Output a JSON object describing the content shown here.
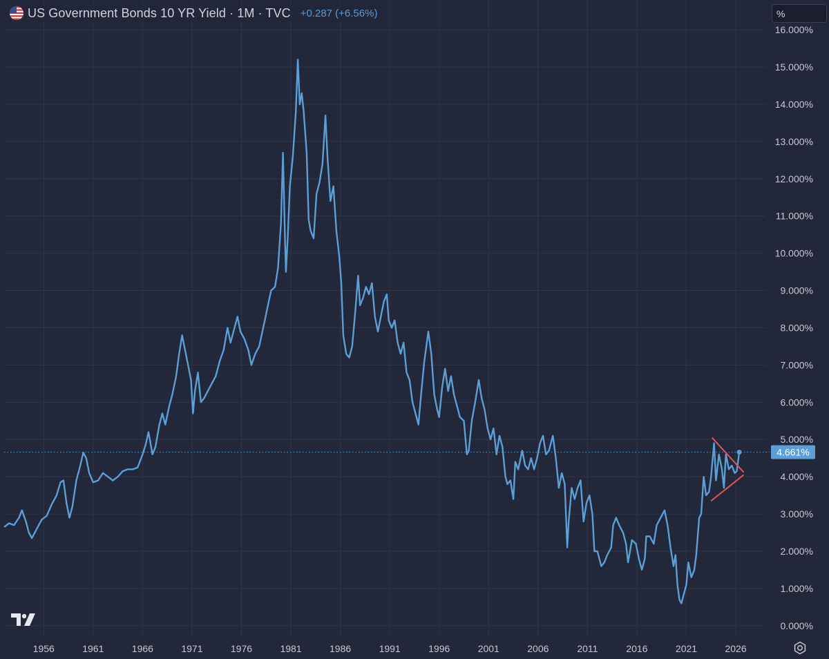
{
  "header": {
    "title": "US Government Bonds 10 YR Yield · 1M · TVC",
    "change": "+0.287 (+6.56%)",
    "flag_icon": "us-flag-icon"
  },
  "unit_selector": {
    "value": "%"
  },
  "colors": {
    "background": "#222739",
    "line": "#5b9fd6",
    "grid": "#2f3548",
    "axis_text": "#c7cad3",
    "price_label_bg": "#5b9fd6",
    "triangle": "#e0545a"
  },
  "icons": {
    "logo": "tradingview-logo-icon",
    "settings": "gear-icon"
  },
  "chart_data": {
    "type": "line",
    "title": "US Government Bonds 10 YR Yield · 1M · TVC",
    "xlabel": "",
    "ylabel": "",
    "y_unit": "%",
    "ylim": [
      -0.3,
      16.8
    ],
    "xlim": [
      1952.0,
      2029.0
    ],
    "x_ticks": [
      1956,
      1961,
      1966,
      1971,
      1976,
      1981,
      1986,
      1991,
      1996,
      2001,
      2006,
      2011,
      2016,
      2021,
      2026
    ],
    "x_tick_labels": [
      "1956",
      "1961",
      "1966",
      "1971",
      "1976",
      "1981",
      "1986",
      "1991",
      "1996",
      "2001",
      "2006",
      "2011",
      "2016",
      "2021",
      "2026"
    ],
    "y_ticks": [
      0,
      1,
      2,
      3,
      4,
      5,
      6,
      7,
      8,
      9,
      10,
      11,
      12,
      13,
      14,
      15,
      16
    ],
    "y_tick_labels": [
      "0.000%",
      "1.000%",
      "2.000%",
      "3.000%",
      "4.000%",
      "5.000%",
      "6.000%",
      "7.000%",
      "8.000%",
      "9.000%",
      "10.000%",
      "11.000%",
      "12.000%",
      "13.000%",
      "14.000%",
      "15.000%",
      "16.000%"
    ],
    "grid": true,
    "last_value": 4.661,
    "last_value_label": "4.661%",
    "series": [
      {
        "points": [
          [
            1952.0,
            2.65
          ],
          [
            1952.5,
            2.75
          ],
          [
            1953.0,
            2.7
          ],
          [
            1953.5,
            2.9
          ],
          [
            1953.8,
            3.1
          ],
          [
            1954.2,
            2.8
          ],
          [
            1954.5,
            2.5
          ],
          [
            1954.8,
            2.35
          ],
          [
            1955.3,
            2.6
          ],
          [
            1955.8,
            2.85
          ],
          [
            1956.3,
            2.95
          ],
          [
            1956.8,
            3.25
          ],
          [
            1957.3,
            3.5
          ],
          [
            1957.7,
            3.85
          ],
          [
            1958.0,
            3.9
          ],
          [
            1958.3,
            3.3
          ],
          [
            1958.6,
            2.9
          ],
          [
            1958.9,
            3.2
          ],
          [
            1959.3,
            3.9
          ],
          [
            1959.7,
            4.3
          ],
          [
            1960.0,
            4.65
          ],
          [
            1960.3,
            4.5
          ],
          [
            1960.6,
            4.1
          ],
          [
            1961.0,
            3.85
          ],
          [
            1961.5,
            3.9
          ],
          [
            1962.0,
            4.1
          ],
          [
            1962.5,
            4.0
          ],
          [
            1963.0,
            3.9
          ],
          [
            1963.5,
            4.0
          ],
          [
            1964.0,
            4.15
          ],
          [
            1964.5,
            4.2
          ],
          [
            1965.0,
            4.2
          ],
          [
            1965.5,
            4.25
          ],
          [
            1966.0,
            4.6
          ],
          [
            1966.3,
            4.85
          ],
          [
            1966.6,
            5.2
          ],
          [
            1967.0,
            4.6
          ],
          [
            1967.3,
            4.8
          ],
          [
            1967.7,
            5.4
          ],
          [
            1968.0,
            5.7
          ],
          [
            1968.3,
            5.4
          ],
          [
            1968.7,
            5.9
          ],
          [
            1969.0,
            6.2
          ],
          [
            1969.4,
            6.7
          ],
          [
            1969.7,
            7.3
          ],
          [
            1970.0,
            7.8
          ],
          [
            1970.3,
            7.4
          ],
          [
            1970.6,
            7.0
          ],
          [
            1970.9,
            6.6
          ],
          [
            1971.1,
            5.7
          ],
          [
            1971.3,
            6.3
          ],
          [
            1971.6,
            6.8
          ],
          [
            1971.9,
            6.0
          ],
          [
            1972.2,
            6.1
          ],
          [
            1972.6,
            6.3
          ],
          [
            1973.0,
            6.5
          ],
          [
            1973.4,
            6.7
          ],
          [
            1973.8,
            7.1
          ],
          [
            1974.2,
            7.4
          ],
          [
            1974.6,
            8.0
          ],
          [
            1974.9,
            7.6
          ],
          [
            1975.2,
            7.9
          ],
          [
            1975.6,
            8.3
          ],
          [
            1975.9,
            7.9
          ],
          [
            1976.3,
            7.7
          ],
          [
            1976.7,
            7.4
          ],
          [
            1977.0,
            7.0
          ],
          [
            1977.4,
            7.3
          ],
          [
            1977.8,
            7.5
          ],
          [
            1978.2,
            8.0
          ],
          [
            1978.6,
            8.5
          ],
          [
            1979.0,
            9.0
          ],
          [
            1979.4,
            9.1
          ],
          [
            1979.7,
            9.6
          ],
          [
            1980.0,
            10.8
          ],
          [
            1980.2,
            12.7
          ],
          [
            1980.4,
            10.4
          ],
          [
            1980.5,
            9.5
          ],
          [
            1980.7,
            10.5
          ],
          [
            1980.9,
            11.8
          ],
          [
            1981.2,
            12.6
          ],
          [
            1981.5,
            13.8
          ],
          [
            1981.7,
            15.2
          ],
          [
            1981.9,
            14.0
          ],
          [
            1982.1,
            14.3
          ],
          [
            1982.3,
            13.8
          ],
          [
            1982.6,
            12.7
          ],
          [
            1982.8,
            10.9
          ],
          [
            1983.0,
            10.6
          ],
          [
            1983.3,
            10.4
          ],
          [
            1983.6,
            11.6
          ],
          [
            1983.9,
            11.9
          ],
          [
            1984.2,
            12.4
          ],
          [
            1984.5,
            13.7
          ],
          [
            1984.7,
            12.6
          ],
          [
            1985.0,
            11.4
          ],
          [
            1985.3,
            11.8
          ],
          [
            1985.6,
            10.6
          ],
          [
            1985.9,
            9.9
          ],
          [
            1986.1,
            9.2
          ],
          [
            1986.3,
            7.8
          ],
          [
            1986.6,
            7.3
          ],
          [
            1986.9,
            7.2
          ],
          [
            1987.2,
            7.5
          ],
          [
            1987.5,
            8.4
          ],
          [
            1987.8,
            9.4
          ],
          [
            1988.0,
            8.6
          ],
          [
            1988.3,
            8.8
          ],
          [
            1988.6,
            9.1
          ],
          [
            1988.9,
            8.9
          ],
          [
            1989.2,
            9.2
          ],
          [
            1989.5,
            8.3
          ],
          [
            1989.8,
            7.9
          ],
          [
            1990.1,
            8.3
          ],
          [
            1990.4,
            8.7
          ],
          [
            1990.7,
            8.9
          ],
          [
            1990.9,
            8.2
          ],
          [
            1991.2,
            8.0
          ],
          [
            1991.5,
            8.2
          ],
          [
            1991.8,
            7.6
          ],
          [
            1992.1,
            7.3
          ],
          [
            1992.4,
            7.6
          ],
          [
            1992.7,
            6.8
          ],
          [
            1993.0,
            6.6
          ],
          [
            1993.3,
            6.0
          ],
          [
            1993.6,
            5.7
          ],
          [
            1993.9,
            5.4
          ],
          [
            1994.2,
            6.3
          ],
          [
            1994.5,
            7.1
          ],
          [
            1994.9,
            7.9
          ],
          [
            1995.2,
            7.3
          ],
          [
            1995.5,
            6.2
          ],
          [
            1995.8,
            5.8
          ],
          [
            1996.0,
            5.6
          ],
          [
            1996.3,
            6.4
          ],
          [
            1996.6,
            6.9
          ],
          [
            1996.9,
            6.3
          ],
          [
            1997.2,
            6.7
          ],
          [
            1997.5,
            6.2
          ],
          [
            1997.8,
            5.9
          ],
          [
            1998.1,
            5.6
          ],
          [
            1998.5,
            5.5
          ],
          [
            1998.8,
            4.6
          ],
          [
            1999.0,
            4.7
          ],
          [
            1999.3,
            5.5
          ],
          [
            1999.7,
            6.1
          ],
          [
            2000.0,
            6.6
          ],
          [
            2000.3,
            6.1
          ],
          [
            2000.6,
            5.8
          ],
          [
            2000.9,
            5.3
          ],
          [
            2001.2,
            5.0
          ],
          [
            2001.5,
            5.3
          ],
          [
            2001.8,
            4.6
          ],
          [
            2002.1,
            5.1
          ],
          [
            2002.4,
            4.8
          ],
          [
            2002.7,
            4.0
          ],
          [
            2002.9,
            3.8
          ],
          [
            2003.2,
            3.9
          ],
          [
            2003.5,
            3.4
          ],
          [
            2003.7,
            4.4
          ],
          [
            2004.0,
            4.2
          ],
          [
            2004.4,
            4.7
          ],
          [
            2004.7,
            4.3
          ],
          [
            2005.0,
            4.2
          ],
          [
            2005.3,
            4.5
          ],
          [
            2005.6,
            4.2
          ],
          [
            2005.9,
            4.5
          ],
          [
            2006.2,
            4.9
          ],
          [
            2006.5,
            5.1
          ],
          [
            2006.8,
            4.6
          ],
          [
            2007.1,
            4.7
          ],
          [
            2007.5,
            5.1
          ],
          [
            2007.8,
            4.5
          ],
          [
            2008.1,
            3.7
          ],
          [
            2008.4,
            4.1
          ],
          [
            2008.7,
            3.8
          ],
          [
            2008.95,
            2.1
          ],
          [
            2009.1,
            2.8
          ],
          [
            2009.4,
            3.7
          ],
          [
            2009.7,
            3.4
          ],
          [
            2010.0,
            3.7
          ],
          [
            2010.3,
            3.9
          ],
          [
            2010.6,
            2.8
          ],
          [
            2010.9,
            3.3
          ],
          [
            2011.2,
            3.5
          ],
          [
            2011.5,
            3.0
          ],
          [
            2011.7,
            2.0
          ],
          [
            2012.0,
            2.0
          ],
          [
            2012.4,
            1.6
          ],
          [
            2012.7,
            1.7
          ],
          [
            2013.0,
            1.9
          ],
          [
            2013.4,
            2.1
          ],
          [
            2013.6,
            2.7
          ],
          [
            2013.9,
            2.9
          ],
          [
            2014.2,
            2.7
          ],
          [
            2014.6,
            2.5
          ],
          [
            2014.9,
            2.2
          ],
          [
            2015.1,
            1.7
          ],
          [
            2015.5,
            2.3
          ],
          [
            2015.9,
            2.2
          ],
          [
            2016.2,
            1.8
          ],
          [
            2016.5,
            1.5
          ],
          [
            2016.8,
            1.8
          ],
          [
            2016.95,
            2.4
          ],
          [
            2017.3,
            2.4
          ],
          [
            2017.7,
            2.2
          ],
          [
            2018.0,
            2.7
          ],
          [
            2018.4,
            2.9
          ],
          [
            2018.8,
            3.1
          ],
          [
            2019.1,
            2.7
          ],
          [
            2019.4,
            2.1
          ],
          [
            2019.7,
            1.6
          ],
          [
            2019.9,
            1.9
          ],
          [
            2020.1,
            1.1
          ],
          [
            2020.3,
            0.7
          ],
          [
            2020.5,
            0.6
          ],
          [
            2020.8,
            0.9
          ],
          [
            2021.0,
            1.1
          ],
          [
            2021.2,
            1.7
          ],
          [
            2021.5,
            1.3
          ],
          [
            2021.8,
            1.5
          ],
          [
            2022.0,
            1.9
          ],
          [
            2022.3,
            2.9
          ],
          [
            2022.5,
            3.0
          ],
          [
            2022.75,
            4.0
          ],
          [
            2023.0,
            3.5
          ],
          [
            2023.3,
            3.6
          ],
          [
            2023.5,
            4.0
          ],
          [
            2023.8,
            4.9
          ],
          [
            2024.0,
            3.9
          ],
          [
            2024.3,
            4.6
          ],
          [
            2024.6,
            4.2
          ],
          [
            2024.8,
            3.7
          ],
          [
            2025.0,
            4.6
          ],
          [
            2025.3,
            4.2
          ],
          [
            2025.6,
            4.3
          ],
          [
            2025.9,
            4.1
          ],
          [
            2026.1,
            4.15
          ],
          [
            2026.35,
            4.661
          ]
        ]
      }
    ],
    "annotations": {
      "triangle_upper": [
        [
          2023.6,
          5.05
        ],
        [
          2026.8,
          4.12
        ]
      ],
      "triangle_lower": [
        [
          2023.5,
          3.35
        ],
        [
          2026.8,
          4.05
        ]
      ]
    }
  }
}
